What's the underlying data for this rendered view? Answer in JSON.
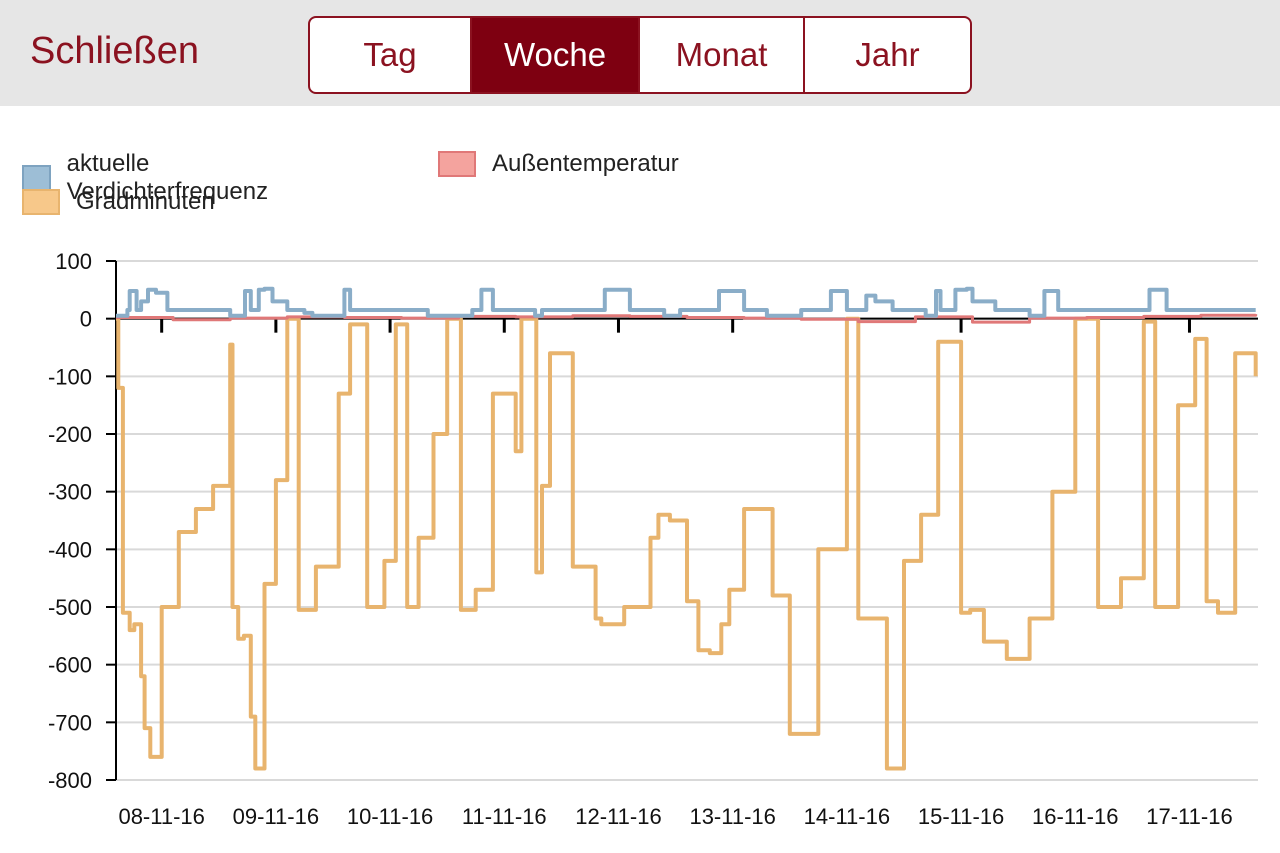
{
  "header": {
    "close_label": "Schließen",
    "tabs": [
      {
        "label": "Tag",
        "active": false
      },
      {
        "label": "Woche",
        "active": true
      },
      {
        "label": "Monat",
        "active": false
      },
      {
        "label": "Jahr",
        "active": false
      }
    ]
  },
  "colors": {
    "accent": "#8b1220",
    "active_tab": "#7e0011",
    "frequency": "#8aadc8",
    "temperature": "#e07878",
    "degree_minutes": "#e8b46e"
  },
  "chart_data": {
    "type": "line",
    "title": "",
    "xlabel": "",
    "ylabel": "",
    "ylim": [
      -800,
      100
    ],
    "yticks": [
      100,
      0,
      -100,
      -200,
      -300,
      -400,
      -500,
      -600,
      -700,
      -800
    ],
    "grid": true,
    "legend_position": "top-left",
    "xticks": [
      "08-11-16",
      "09-11-16",
      "10-11-16",
      "11-11-16",
      "12-11-16",
      "13-11-16",
      "14-11-16",
      "15-11-16",
      "16-11-16",
      "17-11-16"
    ],
    "series": [
      {
        "name": "aktuelle Verdichterfrequenz",
        "color": "#8aadc8",
        "x": [
          0,
          0.1,
          0.12,
          0.18,
          0.22,
          0.28,
          0.35,
          0.45,
          0.6,
          1.0,
          1.13,
          1.18,
          1.25,
          1.3,
          1.37,
          1.5,
          1.6,
          1.65,
          1.72,
          2.0,
          2.05,
          2.07,
          2.2,
          2.3,
          2.45,
          2.55,
          2.73,
          3.0,
          3.12,
          3.2,
          3.3,
          3.4,
          3.6,
          3.67,
          3.73,
          3.9,
          4.0,
          4.15,
          4.28,
          4.5,
          4.68,
          4.8,
          4.94,
          5.0,
          5.1,
          5.28,
          5.5,
          5.7,
          6.0,
          6.18,
          6.26,
          6.4,
          6.5,
          6.57,
          6.65,
          6.8,
          7.0,
          7.09,
          7.18,
          7.22,
          7.35,
          7.45,
          7.5,
          7.7,
          7.9,
          8.0,
          8.13,
          8.25,
          8.5,
          8.75,
          8.95,
          9.05,
          9.2,
          9.37,
          9.55,
          9.75,
          9.98
        ],
        "values": [
          5,
          15,
          48,
          15,
          30,
          50,
          45,
          15,
          15,
          5,
          48,
          15,
          50,
          52,
          30,
          15,
          15,
          10,
          5,
          50,
          15,
          15,
          15,
          15,
          15,
          15,
          5,
          5,
          15,
          50,
          15,
          15,
          15,
          5,
          15,
          15,
          15,
          15,
          50,
          15,
          15,
          5,
          15,
          15,
          15,
          48,
          15,
          5,
          15,
          15,
          48,
          15,
          15,
          40,
          30,
          15,
          15,
          5,
          48,
          15,
          50,
          52,
          30,
          15,
          15,
          5,
          48,
          15,
          15,
          15,
          15,
          50,
          15,
          15,
          15,
          15,
          15
        ]
      },
      {
        "name": "Außentemperatur",
        "color": "#e07878",
        "x": [
          0,
          0.5,
          1.0,
          1.5,
          2.0,
          2.5,
          3.0,
          3.5,
          4.0,
          4.5,
          5.0,
          5.5,
          6.0,
          6.5,
          7.0,
          7.5,
          8.0,
          8.5,
          9.0,
          9.5,
          9.98
        ],
        "values": [
          2,
          -2,
          1,
          3,
          2,
          1,
          4,
          3,
          5,
          4,
          2,
          1,
          -1,
          -5,
          3,
          -6,
          1,
          2,
          4,
          6,
          8
        ]
      },
      {
        "name": "Gradminuten",
        "color": "#e8b46e",
        "x": [
          0,
          0.02,
          0.06,
          0.12,
          0.16,
          0.22,
          0.25,
          0.3,
          0.4,
          0.55,
          0.7,
          0.85,
          1.0,
          1.02,
          1.07,
          1.12,
          1.18,
          1.22,
          1.3,
          1.4,
          1.5,
          1.6,
          1.75,
          1.95,
          2.05,
          2.2,
          2.35,
          2.45,
          2.55,
          2.65,
          2.78,
          2.9,
          3.02,
          3.15,
          3.3,
          3.5,
          3.55,
          3.68,
          3.73,
          3.8,
          4.0,
          4.2,
          4.25,
          4.45,
          4.68,
          4.75,
          4.85,
          5.0,
          5.1,
          5.2,
          5.3,
          5.37,
          5.5,
          5.75,
          5.9,
          6.15,
          6.4,
          6.5,
          6.6,
          6.75,
          6.9,
          7.05,
          7.2,
          7.4,
          7.48,
          7.6,
          7.8,
          8.0,
          8.2,
          8.4,
          8.6,
          8.8,
          9.0,
          9.1,
          9.3,
          9.45,
          9.55,
          9.65,
          9.8,
          9.98
        ],
        "values": [
          0,
          -120,
          -510,
          -540,
          -530,
          -620,
          -710,
          -760,
          -500,
          -370,
          -330,
          -290,
          -45,
          -500,
          -555,
          -550,
          -690,
          -780,
          -460,
          -280,
          0,
          -505,
          -430,
          -130,
          -10,
          -500,
          -420,
          -10,
          -500,
          -380,
          -200,
          0,
          -505,
          -470,
          -130,
          -230,
          0,
          -440,
          -290,
          -60,
          -430,
          -520,
          -530,
          -500,
          -380,
          -340,
          -350,
          -490,
          -575,
          -580,
          -530,
          -470,
          -330,
          -480,
          -720,
          -400,
          0,
          -520,
          -520,
          -780,
          -420,
          -340,
          -40,
          -510,
          -505,
          -560,
          -590,
          -520,
          -300,
          0,
          -500,
          -450,
          -5,
          -500,
          -150,
          -35,
          -490,
          -510,
          -60,
          -100
        ]
      }
    ]
  }
}
